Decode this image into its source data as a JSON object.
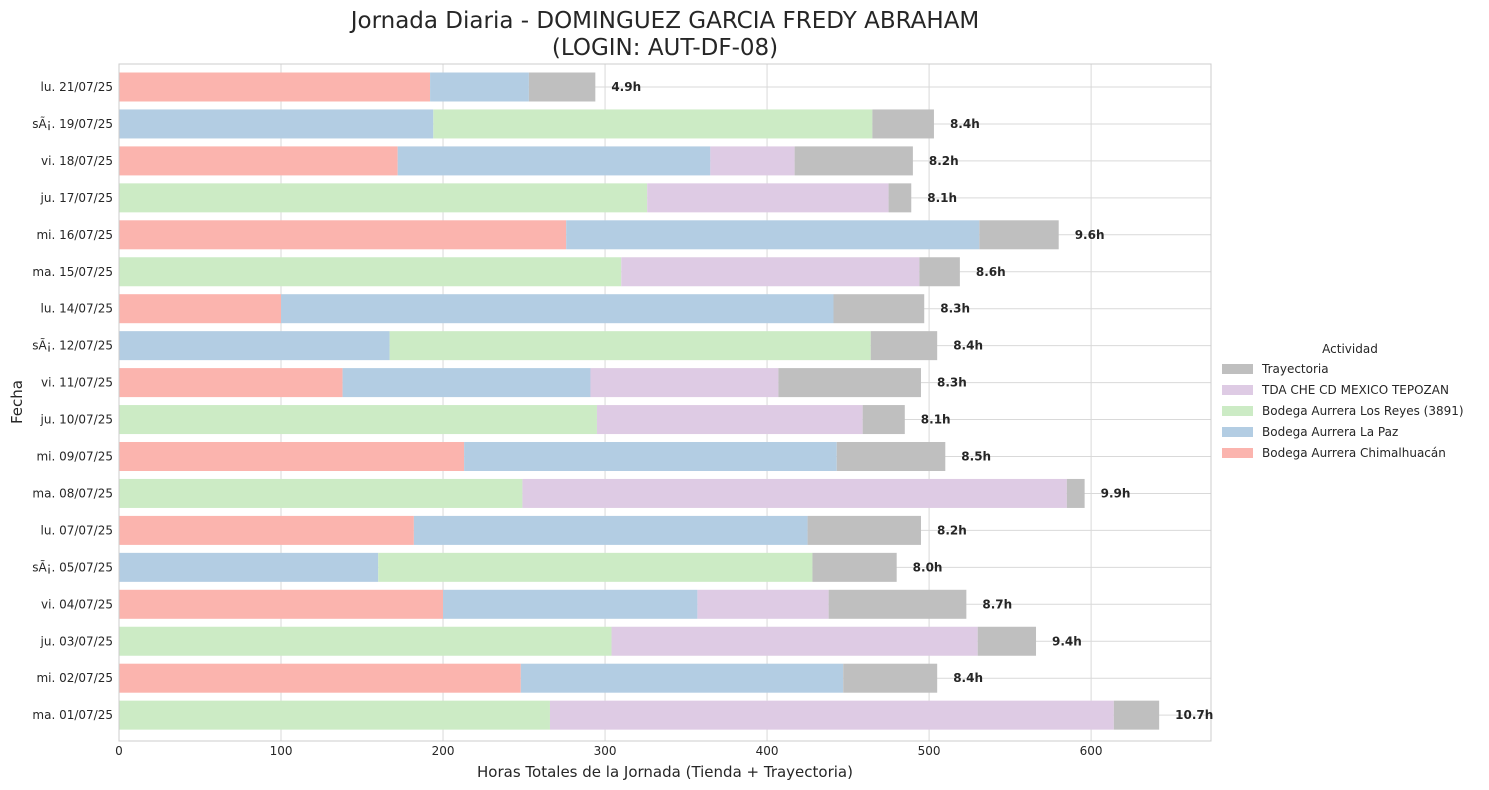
{
  "chart_data": {
    "type": "bar",
    "orientation": "horizontal",
    "stacked": true,
    "title_line1": "Jornada Diaria - DOMINGUEZ GARCIA FREDY ABRAHAM",
    "title_line2": "(LOGIN: AUT-DF-08)",
    "xlabel": "Horas Totales de la Jornada (Tienda + Trayectoria)",
    "ylabel": "Fecha",
    "xlim": [
      0,
      674
    ],
    "xticks": [
      0,
      100,
      200,
      300,
      400,
      500,
      600
    ],
    "grid": true,
    "legend": {
      "title": "Actividad",
      "position": "right",
      "entries": [
        "Trayectoria",
        "TDA CHE CD MEXICO TEPOZAN",
        "Bodega Aurrera Los Reyes (3891)",
        "Bodega Aurrera La Paz",
        "Bodega Aurrera Chimalhuacán"
      ]
    },
    "colors": {
      "Bodega Aurrera Chimalhuacán": "#fbb4ae",
      "Bodega Aurrera La Paz": "#b3cde3",
      "Bodega Aurrera Los Reyes (3891)": "#ccebc5",
      "TDA CHE CD MEXICO TEPOZAN": "#decbe4",
      "Trayectoria": "#bfbfbf"
    },
    "stack_order": [
      "Bodega Aurrera Chimalhuacán",
      "Bodega Aurrera La Paz",
      "Bodega Aurrera Los Reyes (3891)",
      "TDA CHE CD MEXICO TEPOZAN",
      "Trayectoria"
    ],
    "categories": [
      "lu. 21/07/25",
      "sÃ¡. 19/07/25",
      "vi. 18/07/25",
      "ju. 17/07/25",
      "mi. 16/07/25",
      "ma. 15/07/25",
      "lu. 14/07/25",
      "sÃ¡. 12/07/25",
      "vi. 11/07/25",
      "ju. 10/07/25",
      "mi. 09/07/25",
      "ma. 08/07/25",
      "lu. 07/07/25",
      "sÃ¡. 05/07/25",
      "vi. 04/07/25",
      "ju. 03/07/25",
      "mi. 02/07/25",
      "ma. 01/07/25"
    ],
    "series": [
      {
        "name": "Bodega Aurrera Chimalhuacán",
        "values": [
          192,
          0,
          172,
          0,
          276,
          0,
          100,
          0,
          138,
          0,
          213,
          0,
          182,
          0,
          200,
          0,
          248,
          0
        ]
      },
      {
        "name": "Bodega Aurrera La Paz",
        "values": [
          61,
          194,
          193,
          0,
          255,
          0,
          341,
          167,
          153,
          0,
          230,
          0,
          243,
          160,
          157,
          0,
          199,
          0
        ]
      },
      {
        "name": "Bodega Aurrera Los Reyes (3891)",
        "values": [
          0,
          271,
          0,
          326,
          0,
          310,
          0,
          297,
          0,
          295,
          0,
          249,
          0,
          268,
          0,
          304,
          0,
          266
        ]
      },
      {
        "name": "TDA CHE CD MEXICO TEPOZAN",
        "values": [
          0,
          0,
          52,
          149,
          0,
          184,
          0,
          0,
          116,
          164,
          0,
          336,
          0,
          0,
          81,
          226,
          0,
          348
        ]
      },
      {
        "name": "Trayectoria",
        "values": [
          41,
          38,
          73,
          14,
          49,
          25,
          56,
          41,
          88,
          26,
          67,
          11,
          70,
          52,
          85,
          36,
          58,
          28
        ]
      }
    ],
    "totals_labels": [
      "4.9h",
      "8.4h",
      "8.2h",
      "8.1h",
      "9.6h",
      "8.6h",
      "8.3h",
      "8.4h",
      "8.3h",
      "8.1h",
      "8.5h",
      "9.9h",
      "8.2h",
      "8.0h",
      "8.7h",
      "9.4h",
      "8.4h",
      "10.7h"
    ]
  }
}
